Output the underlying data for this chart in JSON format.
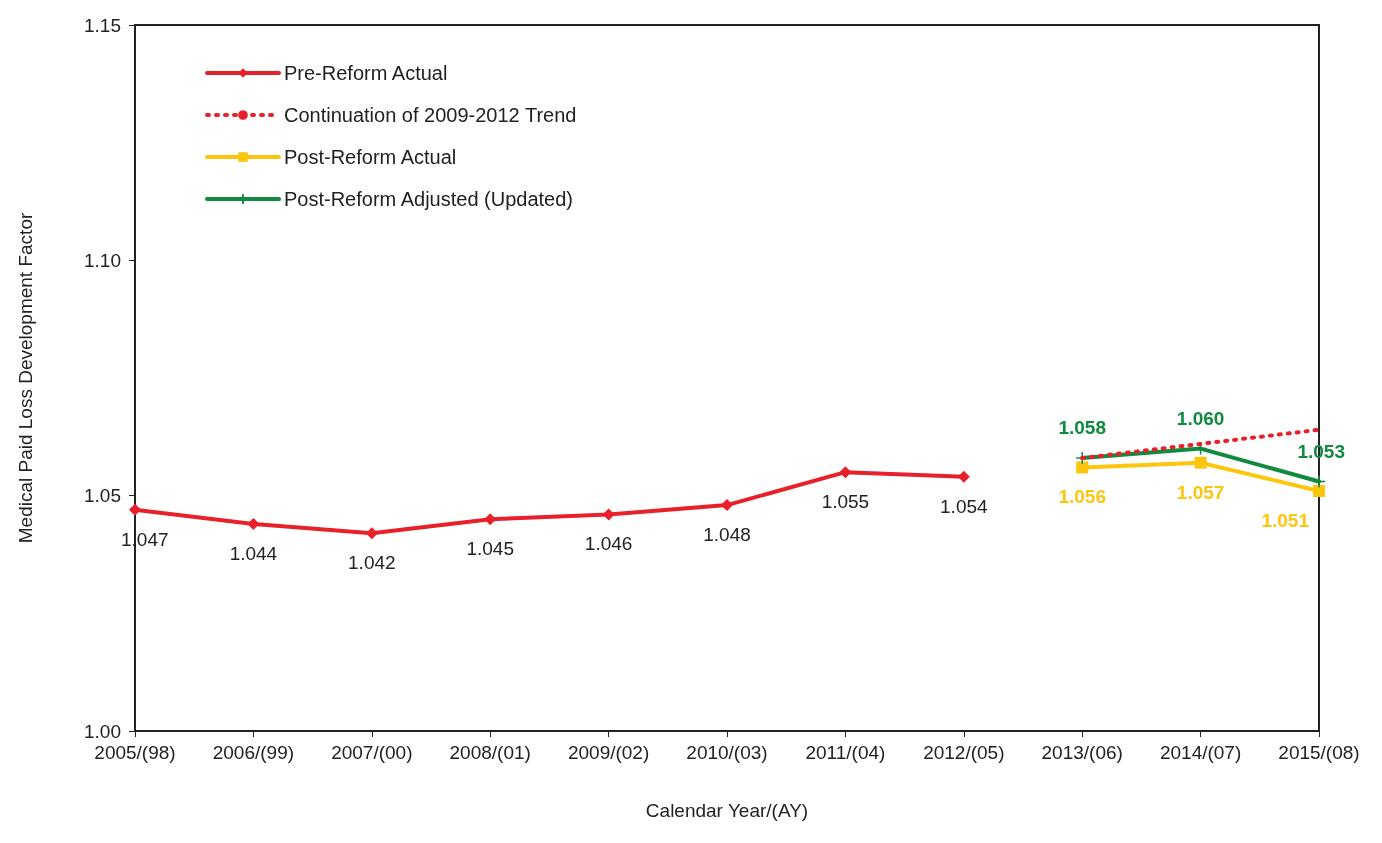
{
  "chart_data": {
    "type": "line",
    "xlabel": "Calendar Year/(AY)",
    "ylabel": "Medical Paid Loss Development Factor",
    "categories": [
      "2005/(98)",
      "2006/(99)",
      "2007/(00)",
      "2008/(01)",
      "2009/(02)",
      "2010/(03)",
      "2011/(04)",
      "2012/(05)",
      "2013/(06)",
      "2014/(07)",
      "2015/(08)"
    ],
    "series": [
      {
        "name": "Pre-Reform Actual",
        "color": "#e8202a",
        "marker": "diamond",
        "line_style": "solid",
        "values": [
          1.047,
          1.044,
          1.042,
          1.045,
          1.046,
          1.048,
          1.055,
          1.054,
          null,
          null,
          null
        ],
        "value_labels": [
          "1.047",
          "1.044",
          "1.042",
          "1.045",
          "1.046",
          "1.048",
          "1.055",
          "1.054",
          null,
          null,
          null
        ]
      },
      {
        "name": "Continuation of 2009-2012 Trend",
        "color": "#e8202a",
        "marker": "none",
        "line_style": "dotted",
        "values": [
          null,
          null,
          null,
          null,
          null,
          null,
          null,
          null,
          1.058,
          1.061,
          1.064
        ]
      },
      {
        "name": "Post-Reform Actual",
        "color": "#fcc60f",
        "marker": "square",
        "line_style": "solid",
        "values": [
          null,
          null,
          null,
          null,
          null,
          null,
          null,
          null,
          1.056,
          1.057,
          1.051
        ],
        "value_labels": [
          null,
          null,
          null,
          null,
          null,
          null,
          null,
          null,
          "1.056",
          "1.057",
          "1.051"
        ]
      },
      {
        "name": "Post-Reform Adjusted (Updated)",
        "color": "#108a3e",
        "marker": "cross",
        "line_style": "solid",
        "values": [
          null,
          null,
          null,
          null,
          null,
          null,
          null,
          null,
          1.058,
          1.06,
          1.053
        ],
        "value_labels": [
          null,
          null,
          null,
          null,
          null,
          null,
          null,
          null,
          "1.058",
          "1.060",
          "1.053"
        ]
      }
    ],
    "ylim": [
      1.0,
      1.15
    ],
    "yticks": [
      {
        "value": 1.0,
        "label": "1.00"
      },
      {
        "value": 1.05,
        "label": "1.05"
      },
      {
        "value": 1.1,
        "label": "1.10"
      },
      {
        "value": 1.15,
        "label": "1.15"
      }
    ],
    "grid": false,
    "legend": "top left"
  }
}
